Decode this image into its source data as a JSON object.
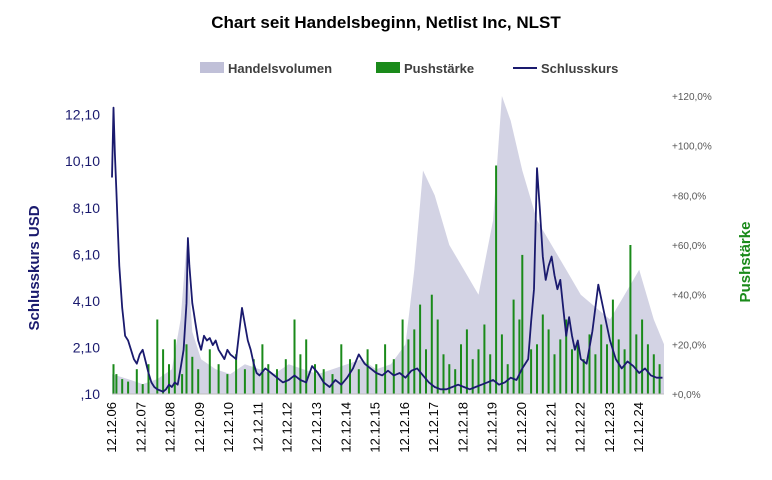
{
  "chart_data": {
    "type": "line",
    "title": "Chart seit Handelsbeginn, Netlist Inc, NLST",
    "legend": {
      "placement": "top",
      "entries": [
        "Handelsvolumen",
        "Pushstärke",
        "Schlusskurs"
      ]
    },
    "colors": {
      "volume": "#c0c0d8",
      "push": "#1a8a1a",
      "close": "#1a1a6e"
    },
    "y_left": {
      "label": "Schlusskurs USD",
      "ticks": [
        ",10",
        "2,10",
        "4,10",
        "6,10",
        "8,10",
        "10,10",
        "12,10"
      ],
      "tick_values": [
        0.1,
        2.1,
        4.1,
        6.1,
        8.1,
        10.1,
        12.1
      ],
      "ylim": [
        0.1,
        12.9
      ]
    },
    "y_right": {
      "label": "Pushstärke",
      "ticks": [
        "+0,0%",
        "+20,0%",
        "+40,0%",
        "+60,0%",
        "+80,0%",
        "+100,0%",
        "+120,0%"
      ],
      "tick_values": [
        0,
        20,
        40,
        60,
        80,
        100,
        120
      ],
      "ylim": [
        0,
        120
      ]
    },
    "x": {
      "ticks": [
        "12.12.06",
        "12.12.07",
        "12.12.08",
        "12.12.09",
        "12.12.10",
        "12.12.11",
        "12.12.12",
        "12.12.13",
        "12.12.14",
        "12.12.15",
        "12.12.16",
        "12.12.17",
        "12.12.18",
        "12.12.19",
        "12.12.20",
        "12.12.21",
        "12.12.22",
        "12.12.23",
        "12.12.24"
      ],
      "range": [
        2006.95,
        2025.85
      ]
    },
    "series": [
      {
        "name": "Schlusskurs",
        "type": "line",
        "x": [
          2006.95,
          2007.0,
          2007.05,
          2007.1,
          2007.15,
          2007.2,
          2007.3,
          2007.35,
          2007.4,
          2007.5,
          2007.6,
          2007.7,
          2007.8,
          2007.9,
          2008.0,
          2008.1,
          2008.2,
          2008.3,
          2008.4,
          2008.5,
          2008.6,
          2008.7,
          2008.8,
          2008.9,
          2009.0,
          2009.1,
          2009.2,
          2009.3,
          2009.4,
          2009.5,
          2009.55,
          2009.6,
          2009.7,
          2009.75,
          2009.8,
          2009.9,
          2010.0,
          2010.1,
          2010.2,
          2010.3,
          2010.4,
          2010.5,
          2010.6,
          2010.7,
          2010.8,
          2010.9,
          2011.0,
          2011.2,
          2011.4,
          2011.6,
          2011.7,
          2011.8,
          2011.9,
          2012.0,
          2012.2,
          2012.4,
          2012.6,
          2012.8,
          2013.0,
          2013.2,
          2013.4,
          2013.6,
          2013.8,
          2014.0,
          2014.2,
          2014.4,
          2014.6,
          2014.8,
          2015.0,
          2015.2,
          2015.4,
          2015.6,
          2015.8,
          2016.0,
          2016.2,
          2016.4,
          2016.6,
          2016.8,
          2017.0,
          2017.2,
          2017.4,
          2017.6,
          2017.8,
          2018.0,
          2018.2,
          2018.4,
          2018.6,
          2018.8,
          2019.0,
          2019.2,
          2019.4,
          2019.6,
          2019.8,
          2020.0,
          2020.2,
          2020.4,
          2020.6,
          2020.8,
          2021.0,
          2021.2,
          2021.3,
          2021.4,
          2021.5,
          2021.6,
          2021.7,
          2021.8,
          2021.9,
          2022.0,
          2022.1,
          2022.2,
          2022.3,
          2022.4,
          2022.5,
          2022.6,
          2022.7,
          2022.8,
          2022.9,
          2023.0,
          2023.2,
          2023.4,
          2023.6,
          2023.8,
          2024.0,
          2024.2,
          2024.4,
          2024.6,
          2024.8,
          2025.0,
          2025.2,
          2025.4,
          2025.6,
          2025.8
        ],
        "values": [
          9.4,
          12.4,
          10.4,
          8.8,
          7.2,
          5.6,
          3.8,
          3.2,
          2.6,
          2.4,
          2.0,
          1.6,
          1.4,
          1.8,
          2.0,
          1.5,
          1.0,
          0.6,
          0.4,
          0.3,
          0.25,
          0.2,
          0.3,
          0.5,
          0.4,
          0.6,
          0.5,
          1.2,
          2.0,
          4.0,
          6.8,
          5.6,
          4.0,
          3.6,
          3.2,
          2.4,
          2.0,
          2.6,
          2.4,
          2.5,
          2.2,
          2.4,
          2.0,
          1.8,
          1.6,
          2.0,
          1.8,
          1.6,
          3.8,
          2.4,
          2.0,
          1.4,
          1.0,
          0.9,
          1.2,
          1.0,
          0.8,
          0.6,
          0.7,
          0.9,
          0.7,
          0.6,
          1.3,
          1.0,
          0.6,
          0.4,
          0.7,
          0.5,
          0.8,
          1.2,
          1.8,
          1.4,
          1.2,
          1.0,
          0.9,
          1.1,
          0.9,
          1.0,
          0.8,
          1.1,
          1.2,
          0.9,
          0.6,
          0.4,
          0.3,
          0.3,
          0.4,
          0.5,
          0.4,
          0.3,
          0.4,
          0.5,
          0.6,
          0.7,
          0.5,
          0.6,
          0.8,
          0.7,
          1.2,
          1.6,
          3.2,
          4.6,
          9.8,
          8.0,
          6.0,
          5.0,
          5.6,
          6.0,
          5.2,
          4.6,
          5.0,
          3.8,
          2.6,
          3.4,
          2.6,
          2.0,
          2.4,
          1.6,
          1.4,
          2.8,
          4.8,
          3.6,
          2.4,
          1.6,
          1.2,
          1.5,
          1.3,
          1.0,
          1.2,
          0.9,
          0.8,
          0.8
        ]
      },
      {
        "name": "Pushstärke",
        "type": "bar",
        "x": [
          2007.0,
          2007.1,
          2007.3,
          2007.5,
          2007.8,
          2008.0,
          2008.2,
          2008.5,
          2008.7,
          2008.9,
          2009.1,
          2009.35,
          2009.5,
          2009.7,
          2009.9,
          2010.3,
          2010.6,
          2010.9,
          2011.2,
          2011.5,
          2011.8,
          2012.1,
          2012.3,
          2012.6,
          2012.9,
          2013.2,
          2013.4,
          2013.6,
          2013.9,
          2014.2,
          2014.5,
          2014.8,
          2015.1,
          2015.4,
          2015.7,
          2016.0,
          2016.3,
          2016.6,
          2016.9,
          2017.1,
          2017.3,
          2017.5,
          2017.7,
          2017.9,
          2018.1,
          2018.3,
          2018.5,
          2018.7,
          2018.9,
          2019.1,
          2019.3,
          2019.5,
          2019.7,
          2019.9,
          2020.1,
          2020.3,
          2020.5,
          2020.7,
          2020.9,
          2021.0,
          2021.3,
          2021.5,
          2021.7,
          2021.9,
          2022.1,
          2022.3,
          2022.5,
          2022.7,
          2022.9,
          2023.1,
          2023.3,
          2023.5,
          2023.7,
          2023.9,
          2024.1,
          2024.3,
          2024.5,
          2024.7,
          2024.9,
          2025.1,
          2025.3,
          2025.5,
          2025.7
        ],
        "values": [
          12,
          8,
          6,
          5,
          10,
          4,
          12,
          30,
          18,
          12,
          22,
          8,
          20,
          15,
          10,
          18,
          12,
          8,
          16,
          10,
          14,
          20,
          12,
          10,
          14,
          30,
          16,
          22,
          12,
          10,
          8,
          20,
          14,
          10,
          18,
          12,
          20,
          14,
          30,
          22,
          26,
          36,
          18,
          40,
          30,
          16,
          12,
          10,
          20,
          26,
          14,
          18,
          28,
          16,
          92,
          24,
          12,
          38,
          30,
          56,
          18,
          20,
          32,
          26,
          16,
          22,
          30,
          18,
          20,
          14,
          24,
          16,
          28,
          20,
          38,
          22,
          18,
          60,
          24,
          30,
          20,
          16,
          12
        ]
      },
      {
        "name": "Handelsvolumen",
        "type": "area",
        "x": [
          2006.95,
          2007.5,
          2008.0,
          2008.5,
          2009.0,
          2009.3,
          2009.5,
          2009.7,
          2010.0,
          2010.5,
          2011.0,
          2011.5,
          2012.0,
          2012.5,
          2013.0,
          2013.5,
          2014.0,
          2014.5,
          2015.0,
          2015.5,
          2016.0,
          2016.5,
          2017.0,
          2017.3,
          2017.6,
          2018.0,
          2018.5,
          2019.0,
          2019.5,
          2020.0,
          2020.3,
          2020.6,
          2021.0,
          2021.5,
          2022.0,
          2022.5,
          2023.0,
          2023.5,
          2024.0,
          2024.5,
          2025.0,
          2025.5,
          2025.85
        ],
        "values": [
          8,
          6,
          4,
          6,
          10,
          30,
          60,
          25,
          14,
          10,
          8,
          12,
          10,
          8,
          12,
          10,
          8,
          10,
          12,
          14,
          10,
          12,
          20,
          50,
          90,
          80,
          60,
          50,
          40,
          70,
          120,
          110,
          90,
          70,
          60,
          50,
          40,
          35,
          30,
          40,
          50,
          30,
          20
        ]
      }
    ]
  }
}
